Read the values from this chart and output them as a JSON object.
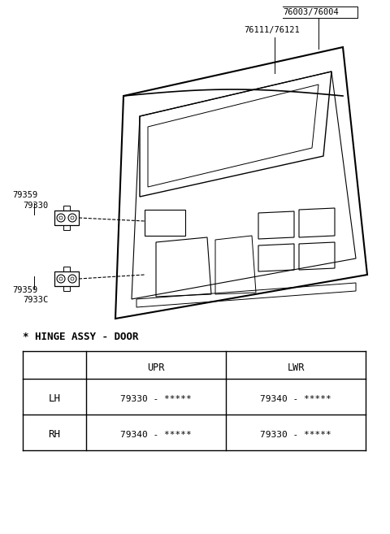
{
  "bg_color": "#ffffff",
  "part_labels": {
    "76003_76004": "76003/76004",
    "76111_76121": "76111/76121",
    "79359_upper": "79359",
    "79330_upper": "79330",
    "79359_lower": "79359",
    "79330C_lower": "7933C"
  },
  "table_title": "* HINGE ASSY - DOOR",
  "table_header": [
    "",
    "UPR",
    "LWR"
  ],
  "table_rows": [
    [
      "LH",
      "79330 - *****",
      "79340 - *****"
    ],
    [
      "RH",
      "79340 - *****",
      "79330 - *****"
    ]
  ],
  "text_color": "#000000",
  "line_color": "#000000"
}
